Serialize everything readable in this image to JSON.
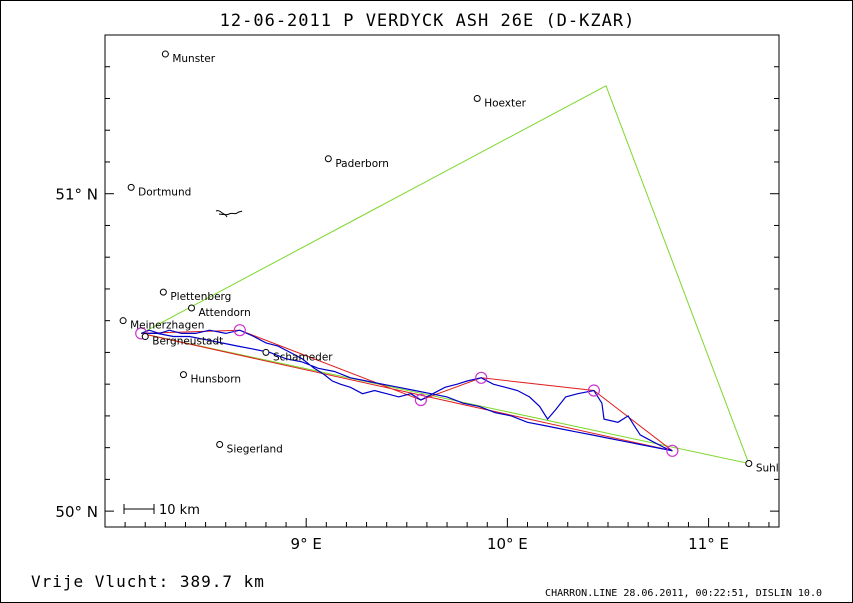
{
  "title": "12-06-2011   P VERDYCK   ASH 26E (D-KZAR)",
  "distance_label": "Vrije Vlucht:  389.7 km",
  "footer": "CHARRON.LINE 28.06.2011, 00:22:51, DISLIN 10.0",
  "map": {
    "lon_range": [
      8.0,
      11.35
    ],
    "lat_range": [
      49.95,
      51.5
    ],
    "x_ticks": [
      {
        "value": 9.0,
        "label": "9° E"
      },
      {
        "value": 10.0,
        "label": "10° E"
      },
      {
        "value": 11.0,
        "label": "11° E"
      }
    ],
    "y_ticks": [
      {
        "value": 50.0,
        "label": "50° N"
      },
      {
        "value": 51.0,
        "label": "51° N"
      }
    ],
    "scale_bar_label": "10 km",
    "colors": {
      "task_line": "#7cd82b",
      "flight_track": "#0000cc",
      "optimized_route": "#e02020",
      "turnpoint_circle": "#cc33cc",
      "frame": "#000000"
    }
  },
  "places": [
    {
      "name": "Munster",
      "lon": 8.3,
      "lat": 51.44
    },
    {
      "name": "Hoexter",
      "lon": 9.85,
      "lat": 51.3
    },
    {
      "name": "Paderborn",
      "lon": 9.11,
      "lat": 51.11
    },
    {
      "name": "Dortmund",
      "lon": 8.13,
      "lat": 51.02
    },
    {
      "name": "Plettenberg",
      "lon": 8.29,
      "lat": 50.69
    },
    {
      "name": "Attendorn",
      "lon": 8.43,
      "lat": 50.64
    },
    {
      "name": "Meinerzhagen",
      "lon": 8.09,
      "lat": 50.6
    },
    {
      "name": "Bergneustadt",
      "lon": 8.2,
      "lat": 50.55
    },
    {
      "name": "Schameder",
      "lon": 8.8,
      "lat": 50.5
    },
    {
      "name": "Hunsborn",
      "lon": 8.39,
      "lat": 50.43
    },
    {
      "name": "Siegerland",
      "lon": 8.57,
      "lat": 50.21
    },
    {
      "name": "Suhl",
      "lon": 11.2,
      "lat": 50.15
    }
  ],
  "task_route": [
    {
      "lon": 8.18,
      "lat": 50.56
    },
    {
      "lon": 10.49,
      "lat": 51.34
    },
    {
      "lon": 11.2,
      "lat": 50.15
    },
    {
      "lon": 8.18,
      "lat": 50.56
    }
  ],
  "optimized_route": [
    {
      "lon": 8.18,
      "lat": 50.56
    },
    {
      "lon": 8.67,
      "lat": 50.57
    },
    {
      "lon": 9.57,
      "lat": 50.35
    },
    {
      "lon": 9.87,
      "lat": 50.42
    },
    {
      "lon": 10.43,
      "lat": 50.38
    },
    {
      "lon": 10.82,
      "lat": 50.19
    },
    {
      "lon": 8.18,
      "lat": 50.56
    }
  ],
  "turnpoints": [
    {
      "lon": 8.18,
      "lat": 50.56
    },
    {
      "lon": 8.67,
      "lat": 50.57
    },
    {
      "lon": 9.57,
      "lat": 50.35
    },
    {
      "lon": 9.87,
      "lat": 50.42
    },
    {
      "lon": 10.43,
      "lat": 50.38
    },
    {
      "lon": 10.82,
      "lat": 50.19
    }
  ],
  "flight_track": [
    {
      "lon": 8.18,
      "lat": 50.56
    },
    {
      "lon": 8.22,
      "lat": 50.57
    },
    {
      "lon": 8.27,
      "lat": 50.56
    },
    {
      "lon": 8.32,
      "lat": 50.57
    },
    {
      "lon": 8.38,
      "lat": 50.56
    },
    {
      "lon": 8.45,
      "lat": 50.56
    },
    {
      "lon": 8.52,
      "lat": 50.57
    },
    {
      "lon": 8.6,
      "lat": 50.56
    },
    {
      "lon": 8.67,
      "lat": 50.57
    },
    {
      "lon": 8.74,
      "lat": 50.55
    },
    {
      "lon": 8.8,
      "lat": 50.53
    },
    {
      "lon": 8.86,
      "lat": 50.52
    },
    {
      "lon": 8.92,
      "lat": 50.5
    },
    {
      "lon": 8.98,
      "lat": 50.48
    },
    {
      "lon": 9.04,
      "lat": 50.45
    },
    {
      "lon": 9.09,
      "lat": 50.43
    },
    {
      "lon": 9.13,
      "lat": 50.41
    },
    {
      "lon": 9.17,
      "lat": 50.4
    },
    {
      "lon": 9.22,
      "lat": 50.39
    },
    {
      "lon": 9.28,
      "lat": 50.37
    },
    {
      "lon": 9.34,
      "lat": 50.38
    },
    {
      "lon": 9.4,
      "lat": 50.37
    },
    {
      "lon": 9.46,
      "lat": 50.36
    },
    {
      "lon": 9.52,
      "lat": 50.37
    },
    {
      "lon": 9.57,
      "lat": 50.35
    },
    {
      "lon": 9.63,
      "lat": 50.37
    },
    {
      "lon": 9.69,
      "lat": 50.39
    },
    {
      "lon": 9.75,
      "lat": 50.4
    },
    {
      "lon": 9.8,
      "lat": 50.41
    },
    {
      "lon": 9.87,
      "lat": 50.42
    },
    {
      "lon": 9.93,
      "lat": 50.4
    },
    {
      "lon": 9.99,
      "lat": 50.39
    },
    {
      "lon": 10.05,
      "lat": 50.38
    },
    {
      "lon": 10.11,
      "lat": 50.36
    },
    {
      "lon": 10.16,
      "lat": 50.33
    },
    {
      "lon": 10.2,
      "lat": 50.29
    },
    {
      "lon": 10.24,
      "lat": 50.32
    },
    {
      "lon": 10.29,
      "lat": 50.36
    },
    {
      "lon": 10.35,
      "lat": 50.37
    },
    {
      "lon": 10.43,
      "lat": 50.38
    },
    {
      "lon": 10.47,
      "lat": 50.34
    },
    {
      "lon": 10.48,
      "lat": 50.29
    },
    {
      "lon": 10.55,
      "lat": 50.28
    },
    {
      "lon": 10.6,
      "lat": 50.3
    },
    {
      "lon": 10.63,
      "lat": 50.27
    },
    {
      "lon": 10.66,
      "lat": 50.24
    },
    {
      "lon": 10.72,
      "lat": 50.22
    },
    {
      "lon": 10.78,
      "lat": 50.2
    },
    {
      "lon": 10.82,
      "lat": 50.19
    },
    {
      "lon": 10.74,
      "lat": 50.2
    },
    {
      "lon": 10.66,
      "lat": 50.21
    },
    {
      "lon": 10.58,
      "lat": 50.22
    },
    {
      "lon": 10.5,
      "lat": 50.23
    },
    {
      "lon": 10.42,
      "lat": 50.24
    },
    {
      "lon": 10.34,
      "lat": 50.25
    },
    {
      "lon": 10.26,
      "lat": 50.26
    },
    {
      "lon": 10.18,
      "lat": 50.27
    },
    {
      "lon": 10.1,
      "lat": 50.28
    },
    {
      "lon": 10.02,
      "lat": 50.3
    },
    {
      "lon": 9.94,
      "lat": 50.31
    },
    {
      "lon": 9.86,
      "lat": 50.33
    },
    {
      "lon": 9.78,
      "lat": 50.34
    },
    {
      "lon": 9.7,
      "lat": 50.36
    },
    {
      "lon": 9.62,
      "lat": 50.37
    },
    {
      "lon": 9.54,
      "lat": 50.38
    },
    {
      "lon": 9.46,
      "lat": 50.39
    },
    {
      "lon": 9.38,
      "lat": 50.4
    },
    {
      "lon": 9.3,
      "lat": 50.41
    },
    {
      "lon": 9.22,
      "lat": 50.42
    },
    {
      "lon": 9.14,
      "lat": 50.44
    },
    {
      "lon": 9.06,
      "lat": 50.45
    },
    {
      "lon": 8.98,
      "lat": 50.47
    },
    {
      "lon": 8.9,
      "lat": 50.48
    },
    {
      "lon": 8.82,
      "lat": 50.5
    },
    {
      "lon": 8.74,
      "lat": 50.51
    },
    {
      "lon": 8.66,
      "lat": 50.52
    },
    {
      "lon": 8.58,
      "lat": 50.53
    },
    {
      "lon": 8.5,
      "lat": 50.54
    },
    {
      "lon": 8.42,
      "lat": 50.55
    },
    {
      "lon": 8.34,
      "lat": 50.55
    },
    {
      "lon": 8.26,
      "lat": 50.56
    },
    {
      "lon": 8.2,
      "lat": 50.56
    }
  ]
}
